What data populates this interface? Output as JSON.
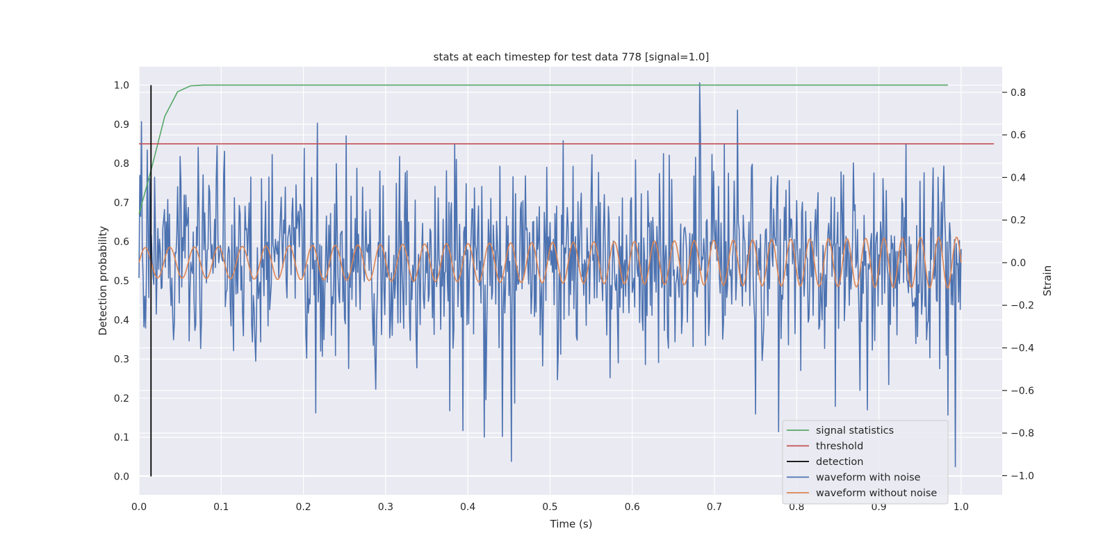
{
  "chart_data": {
    "type": "line",
    "title": "stats at each timestep for test data 778 [signal=1.0]",
    "xlabel": "Time (s)",
    "ylabel": "Detection probability",
    "ylabel_right": "Strain",
    "xlim": [
      0.0,
      1.05
    ],
    "ylim": [
      -0.047,
      1.047
    ],
    "ylim_right": [
      -1.09,
      0.92
    ],
    "x_ticks": [
      "0.0",
      "0.1",
      "0.2",
      "0.3",
      "0.4",
      "0.5",
      "0.6",
      "0.7",
      "0.8",
      "0.9",
      "1.0"
    ],
    "y_ticks": [
      "0.0",
      "0.1",
      "0.2",
      "0.3",
      "0.4",
      "0.5",
      "0.6",
      "0.7",
      "0.8",
      "0.9",
      "1.0"
    ],
    "y_right_ticks": [
      "−1.0",
      "−0.8",
      "−0.6",
      "−0.4",
      "−0.2",
      "0.0",
      "0.2",
      "0.4",
      "0.6",
      "0.8"
    ],
    "grid": true,
    "background": "#eaeaf2",
    "legend_position": "lower-right",
    "series": [
      {
        "name": "signal statistics",
        "color": "#55a868",
        "axis": "left",
        "x": [
          0.0,
          0.0156,
          0.0313,
          0.0469,
          0.0625,
          0.0781,
          0.0938,
          0.125,
          0.25,
          0.5,
          0.75,
          0.984
        ],
        "y": [
          0.67,
          0.79,
          0.92,
          0.983,
          0.998,
          1.0,
          1.0,
          1.0,
          1.0,
          1.0,
          1.0,
          1.0
        ]
      },
      {
        "name": "threshold",
        "color": "#c44e52",
        "axis": "left",
        "x": [
          0.0,
          1.04
        ],
        "y": [
          0.85,
          0.85
        ]
      },
      {
        "name": "detection",
        "color": "#000000",
        "axis": "left",
        "x": [
          0.0146,
          0.0146
        ],
        "y": [
          0.0,
          1.0
        ]
      },
      {
        "name": "waveform with noise",
        "color": "#4c72b0",
        "axis": "right",
        "noise_std": 0.22,
        "x_range": [
          0.0,
          1.0
        ],
        "num_samples": 1000,
        "y_range": [
          -1.0,
          0.8
        ],
        "peaks": [
          {
            "x": 0.252,
            "y": 0.62
          },
          {
            "x": 0.682,
            "y": 0.85
          },
          {
            "x": 0.728,
            "y": 0.71
          },
          {
            "x": 0.453,
            "y": -0.96
          },
          {
            "x": 0.993,
            "y": -0.99
          },
          {
            "x": 0.886,
            "y": -0.72
          },
          {
            "x": 0.215,
            "y": -0.72
          },
          {
            "x": 0.394,
            "y": -0.79
          },
          {
            "x": 0.42,
            "y": -0.82
          }
        ]
      },
      {
        "name": "waveform without noise",
        "color": "#dd8452",
        "axis": "right",
        "amplitude_start": 0.07,
        "amplitude_end": 0.12,
        "freq_start_hz": 33,
        "freq_end_hz": 46,
        "x_range": [
          0.0,
          1.0
        ]
      }
    ]
  }
}
